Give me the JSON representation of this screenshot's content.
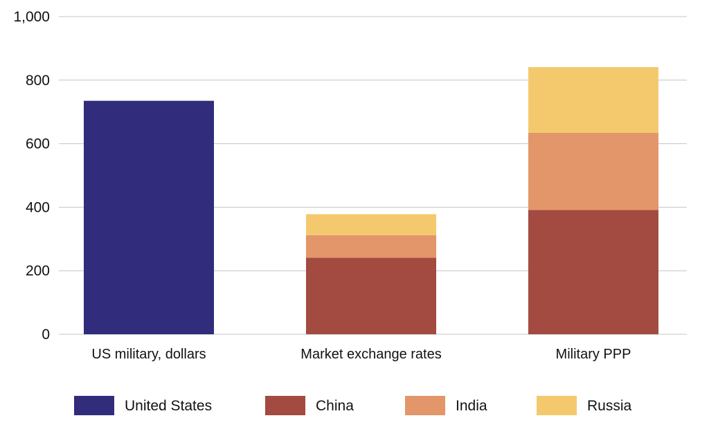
{
  "chart_data": {
    "type": "bar",
    "stacked": true,
    "title": "",
    "xlabel": "",
    "ylabel": "",
    "categories": [
      "US military, dollars",
      "Market exchange rates",
      "Military PPP"
    ],
    "series": [
      {
        "name": "United States",
        "color": "#312c7c",
        "values": [
          735,
          0,
          0
        ]
      },
      {
        "name": "China",
        "color": "#a34a41",
        "values": [
          0,
          241,
          391
        ]
      },
      {
        "name": "India",
        "color": "#e2966a",
        "values": [
          0,
          71,
          243
        ]
      },
      {
        "name": "Russia",
        "color": "#f4c96e",
        "values": [
          0,
          66,
          207
        ]
      }
    ],
    "ylim": [
      0,
      1000
    ],
    "yticks": [
      0,
      200,
      400,
      600,
      800,
      1000
    ],
    "ytick_labels": [
      "0",
      "200",
      "400",
      "600",
      "800",
      "1,000"
    ],
    "grid": "horizontal",
    "legend_position": "bottom"
  }
}
